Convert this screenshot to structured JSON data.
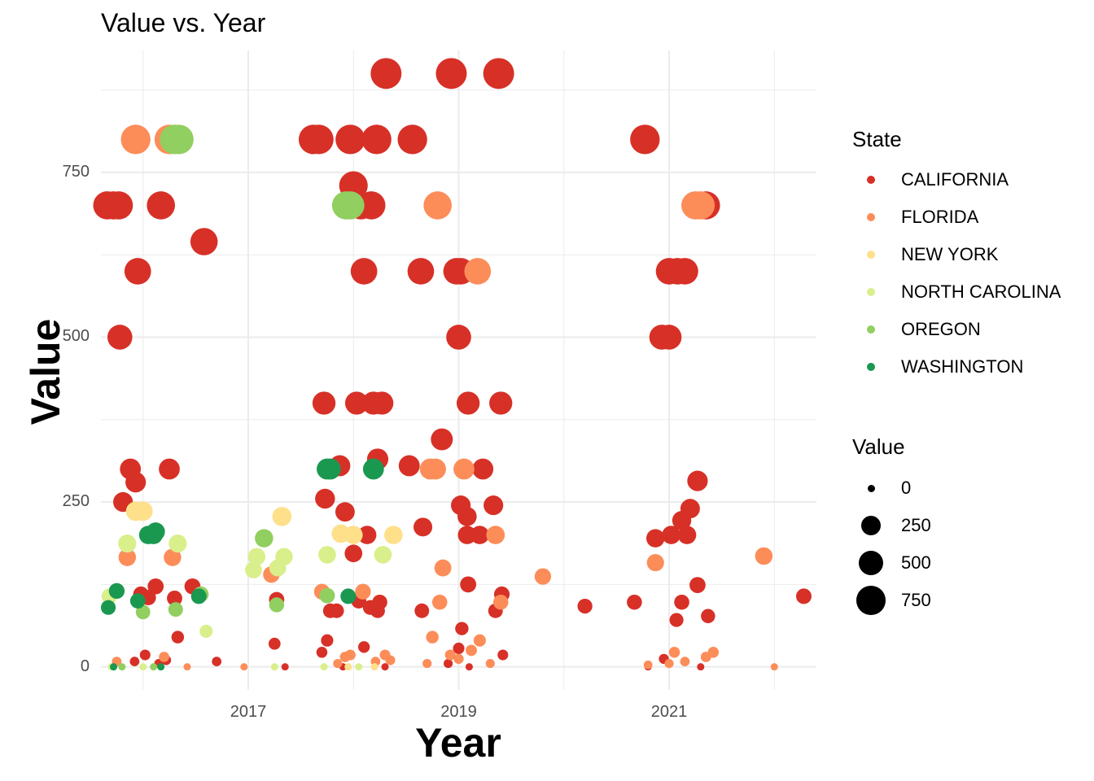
{
  "chart_data": {
    "type": "scatter",
    "title": "Value vs. Year",
    "xlabel": "Year",
    "ylabel": "Value",
    "xlim": [
      2015.6,
      2022.4
    ],
    "ylim": [
      -35,
      935
    ],
    "x_ticks": [
      "2017",
      "2019",
      "2021"
    ],
    "y_ticks": [
      "0",
      "250",
      "500",
      "750"
    ],
    "grid": true,
    "legend_placement": "right",
    "color_legend": {
      "title": "State",
      "entries": [
        {
          "name": "CALIFORNIA",
          "color": "#d73027"
        },
        {
          "name": "FLORIDA",
          "color": "#fc8d59"
        },
        {
          "name": "NEW YORK",
          "color": "#fee08b"
        },
        {
          "name": "NORTH CAROLINA",
          "color": "#d9ef8b"
        },
        {
          "name": "OREGON",
          "color": "#91cf60"
        },
        {
          "name": "WASHINGTON",
          "color": "#1a9850"
        }
      ]
    },
    "size_legend": {
      "title": "Value",
      "entries": [
        "0",
        "250",
        "500",
        "750"
      ]
    },
    "series": [
      {
        "name": "CALIFORNIA",
        "points": [
          [
            2015.66,
            700
          ],
          [
            2015.72,
            700
          ],
          [
            2015.77,
            700
          ],
          [
            2015.78,
            500
          ],
          [
            2015.95,
            600
          ],
          [
            2015.88,
            300
          ],
          [
            2015.93,
            280
          ],
          [
            2015.81,
            250
          ],
          [
            2016.17,
            700
          ],
          [
            2016.25,
            300
          ],
          [
            2016.58,
            645
          ],
          [
            2015.98,
            110
          ],
          [
            2016.05,
            105
          ],
          [
            2016.12,
            122
          ],
          [
            2016.3,
            104
          ],
          [
            2016.47,
            122
          ],
          [
            2016.33,
            45
          ],
          [
            2016.02,
            18
          ],
          [
            2015.92,
            8
          ],
          [
            2016.15,
            5
          ],
          [
            2016.22,
            10
          ],
          [
            2017.62,
            800
          ],
          [
            2017.67,
            800
          ],
          [
            2017.73,
            255
          ],
          [
            2017.87,
            305
          ],
          [
            2017.92,
            235
          ],
          [
            2017.78,
            85
          ],
          [
            2017.84,
            85
          ],
          [
            2017.75,
            40
          ],
          [
            2017.7,
            22
          ],
          [
            2017.97,
            800
          ],
          [
            2018.22,
            800
          ],
          [
            2018.0,
            730
          ],
          [
            2018.07,
            700
          ],
          [
            2018.17,
            700
          ],
          [
            2018.1,
            600
          ],
          [
            2018.03,
            400
          ],
          [
            2017.72,
            400
          ],
          [
            2018.19,
            400
          ],
          [
            2018.27,
            400
          ],
          [
            2018.23,
            315
          ],
          [
            2018.13,
            200
          ],
          [
            2018.0,
            172
          ],
          [
            2018.05,
            100
          ],
          [
            2018.16,
            90
          ],
          [
            2018.25,
            98
          ],
          [
            2018.23,
            85
          ],
          [
            2018.1,
            30
          ],
          [
            2018.31,
            900
          ],
          [
            2018.56,
            800
          ],
          [
            2018.93,
            900
          ],
          [
            2019.38,
            900
          ],
          [
            2018.64,
            600
          ],
          [
            2018.98,
            600
          ],
          [
            2019.02,
            600
          ],
          [
            2019.0,
            500
          ],
          [
            2019.09,
            400
          ],
          [
            2019.4,
            400
          ],
          [
            2018.84,
            345
          ],
          [
            2018.53,
            305
          ],
          [
            2019.23,
            300
          ],
          [
            2018.66,
            212
          ],
          [
            2019.02,
            245
          ],
          [
            2019.08,
            228
          ],
          [
            2019.08,
            200
          ],
          [
            2019.2,
            200
          ],
          [
            2019.33,
            245
          ],
          [
            2019.09,
            125
          ],
          [
            2019.41,
            110
          ],
          [
            2019.35,
            85
          ],
          [
            2019.03,
            58
          ],
          [
            2018.65,
            85
          ],
          [
            2019.0,
            28
          ],
          [
            2018.9,
            5
          ],
          [
            2019.42,
            18
          ],
          [
            2020.2,
            92
          ],
          [
            2020.67,
            98
          ],
          [
            2020.77,
            800
          ],
          [
            2020.93,
            500
          ],
          [
            2021.0,
            500
          ],
          [
            2021.0,
            600
          ],
          [
            2021.08,
            600
          ],
          [
            2021.15,
            600
          ],
          [
            2020.87,
            195
          ],
          [
            2021.02,
            200
          ],
          [
            2021.12,
            222
          ],
          [
            2021.17,
            200
          ],
          [
            2021.2,
            240
          ],
          [
            2021.27,
            282
          ],
          [
            2021.27,
            124
          ],
          [
            2021.12,
            98
          ],
          [
            2021.07,
            71
          ],
          [
            2021.37,
            77
          ],
          [
            2021.35,
            700
          ],
          [
            2020.95,
            12
          ],
          [
            2022.28,
            107
          ],
          [
            2017.25,
            35
          ],
          [
            2017.27,
            102
          ],
          [
            2016.7,
            8
          ],
          [
            2017.35,
            0
          ],
          [
            2017.9,
            0
          ],
          [
            2018.3,
            0
          ],
          [
            2019.1,
            0
          ],
          [
            2020.8,
            0
          ],
          [
            2021.3,
            0
          ]
        ]
      },
      {
        "name": "FLORIDA",
        "points": [
          [
            2015.93,
            800
          ],
          [
            2016.25,
            800
          ],
          [
            2015.85,
            166
          ],
          [
            2016.28,
            166
          ],
          [
            2016.2,
            15
          ],
          [
            2016.42,
            0
          ],
          [
            2015.75,
            8
          ],
          [
            2016.96,
            0
          ],
          [
            2017.22,
            140
          ],
          [
            2017.7,
            114
          ],
          [
            2017.97,
            18
          ],
          [
            2017.92,
            15
          ],
          [
            2018.09,
            114
          ],
          [
            2018.3,
            18
          ],
          [
            2018.35,
            10
          ],
          [
            2018.21,
            8
          ],
          [
            2017.85,
            5
          ],
          [
            2018.8,
            700
          ],
          [
            2018.73,
            300
          ],
          [
            2018.78,
            300
          ],
          [
            2019.05,
            300
          ],
          [
            2019.18,
            600
          ],
          [
            2018.85,
            150
          ],
          [
            2018.82,
            98
          ],
          [
            2019.35,
            200
          ],
          [
            2019.4,
            98
          ],
          [
            2018.75,
            45
          ],
          [
            2018.92,
            18
          ],
          [
            2019.2,
            40
          ],
          [
            2019.12,
            25
          ],
          [
            2019.0,
            12
          ],
          [
            2018.7,
            5
          ],
          [
            2019.3,
            5
          ],
          [
            2019.8,
            137
          ],
          [
            2020.87,
            158
          ],
          [
            2021.25,
            700
          ],
          [
            2021.3,
            700
          ],
          [
            2021.05,
            22
          ],
          [
            2021.35,
            15
          ],
          [
            2021.42,
            22
          ],
          [
            2021.15,
            8
          ],
          [
            2021.0,
            5
          ],
          [
            2020.8,
            3
          ],
          [
            2021.9,
            168
          ],
          [
            2022.0,
            0
          ]
        ]
      },
      {
        "name": "NEW YORK",
        "points": [
          [
            2015.93,
            236
          ],
          [
            2016.0,
            236
          ],
          [
            2017.32,
            228
          ],
          [
            2017.88,
            202
          ],
          [
            2018.0,
            200
          ],
          [
            2018.38,
            200
          ],
          [
            2017.95,
            0
          ],
          [
            2018.2,
            0
          ]
        ]
      },
      {
        "name": "NORTH CAROLINA",
        "points": [
          [
            2015.85,
            187
          ],
          [
            2016.33,
            187
          ],
          [
            2015.68,
            107
          ],
          [
            2016.6,
            54
          ],
          [
            2017.05,
            147
          ],
          [
            2017.08,
            167
          ],
          [
            2017.28,
            150
          ],
          [
            2017.34,
            167
          ],
          [
            2017.75,
            170
          ],
          [
            2018.28,
            170
          ],
          [
            2017.72,
            0
          ],
          [
            2018.05,
            0
          ],
          [
            2015.7,
            0
          ],
          [
            2016.0,
            0
          ],
          [
            2017.25,
            0
          ]
        ]
      },
      {
        "name": "OREGON",
        "points": [
          [
            2016.3,
            800
          ],
          [
            2016.34,
            800
          ],
          [
            2017.97,
            700
          ],
          [
            2017.93,
            700
          ],
          [
            2016.0,
            83
          ],
          [
            2016.31,
            87
          ],
          [
            2017.15,
            195
          ],
          [
            2017.27,
            94
          ],
          [
            2017.75,
            108
          ],
          [
            2016.55,
            110
          ],
          [
            2015.8,
            0
          ],
          [
            2016.1,
            0
          ]
        ]
      },
      {
        "name": "WASHINGTON",
        "points": [
          [
            2015.67,
            90
          ],
          [
            2015.75,
            115
          ],
          [
            2016.05,
            200
          ],
          [
            2016.1,
            200
          ],
          [
            2016.12,
            205
          ],
          [
            2015.95,
            100
          ],
          [
            2016.53,
            107
          ],
          [
            2017.75,
            300
          ],
          [
            2017.78,
            300
          ],
          [
            2018.19,
            300
          ],
          [
            2017.95,
            107
          ],
          [
            2015.72,
            0
          ],
          [
            2016.17,
            0
          ]
        ]
      }
    ]
  }
}
